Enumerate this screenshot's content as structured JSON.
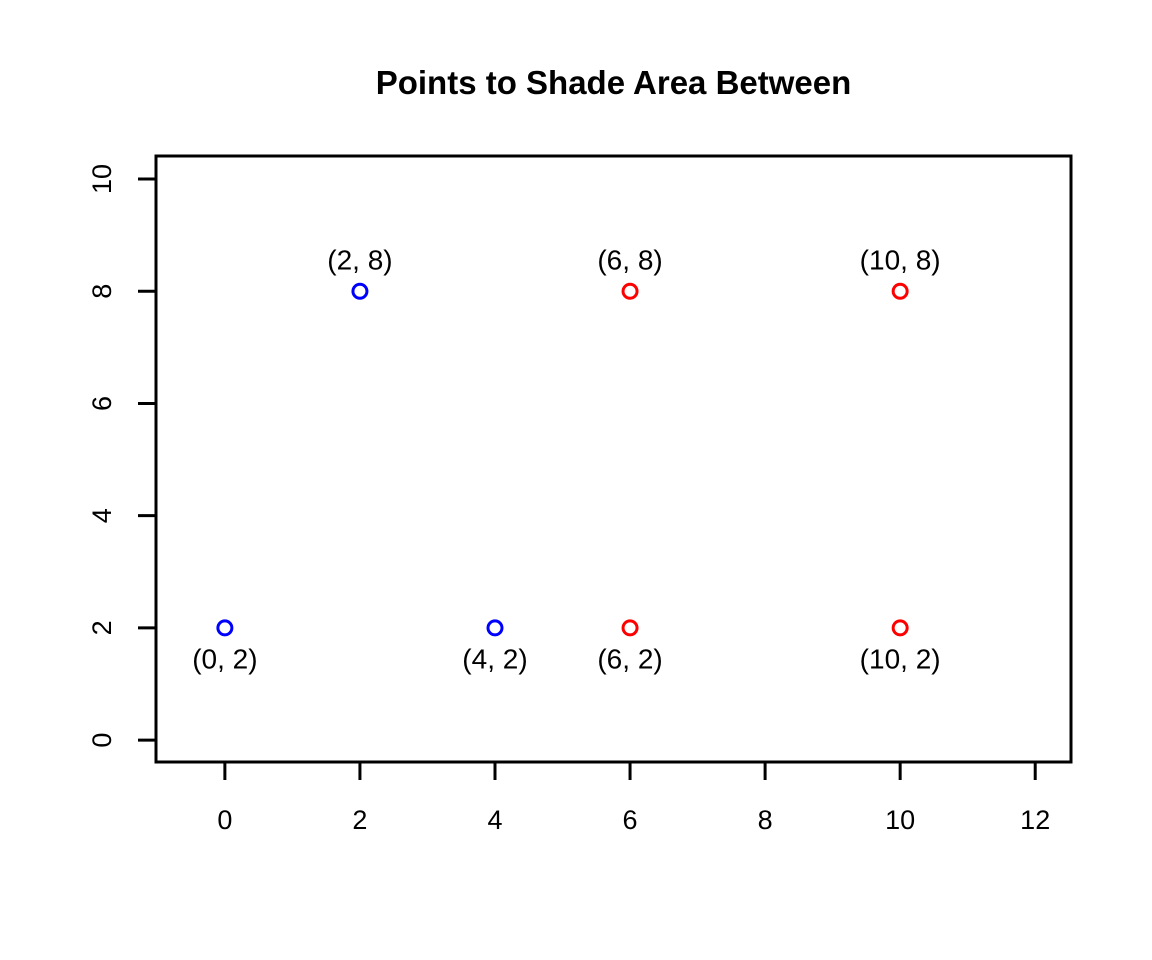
{
  "chart_data": {
    "type": "scatter",
    "title": "Points to Shade Area Between",
    "xlabel": "",
    "ylabel": "",
    "x_ticks": [
      "0",
      "2",
      "4",
      "6",
      "8",
      "10",
      "12"
    ],
    "x_tick_values": [
      0,
      2,
      4,
      6,
      8,
      10,
      12
    ],
    "y_ticks": [
      "0",
      "2",
      "4",
      "6",
      "8",
      "10"
    ],
    "y_tick_values": [
      0,
      2,
      4,
      6,
      8,
      10
    ],
    "xlim": [
      -1.02,
      12.53
    ],
    "ylim": [
      -0.39,
      10.41
    ],
    "grid": false,
    "legend": "none",
    "colors": {
      "blue": "#0000FF",
      "red": "#FF0000",
      "axis": "#000000",
      "label": "#000000",
      "background": "#FFFFFF"
    },
    "series": [
      {
        "name": "blue-points",
        "color": "#0000FF",
        "points": [
          {
            "x": 0,
            "y": 2,
            "label": "(0, 2)",
            "label_pos": "below"
          },
          {
            "x": 2,
            "y": 8,
            "label": "(2, 8)",
            "label_pos": "above"
          },
          {
            "x": 4,
            "y": 2,
            "label": "(4, 2)",
            "label_pos": "below"
          }
        ]
      },
      {
        "name": "red-points",
        "color": "#FF0000",
        "points": [
          {
            "x": 6,
            "y": 8,
            "label": "(6, 8)",
            "label_pos": "above"
          },
          {
            "x": 6,
            "y": 2,
            "label": "(6, 2)",
            "label_pos": "below"
          },
          {
            "x": 10,
            "y": 8,
            "label": "(10, 8)",
            "label_pos": "above"
          },
          {
            "x": 10,
            "y": 2,
            "label": "(10, 2)",
            "label_pos": "below"
          }
        ]
      }
    ]
  }
}
